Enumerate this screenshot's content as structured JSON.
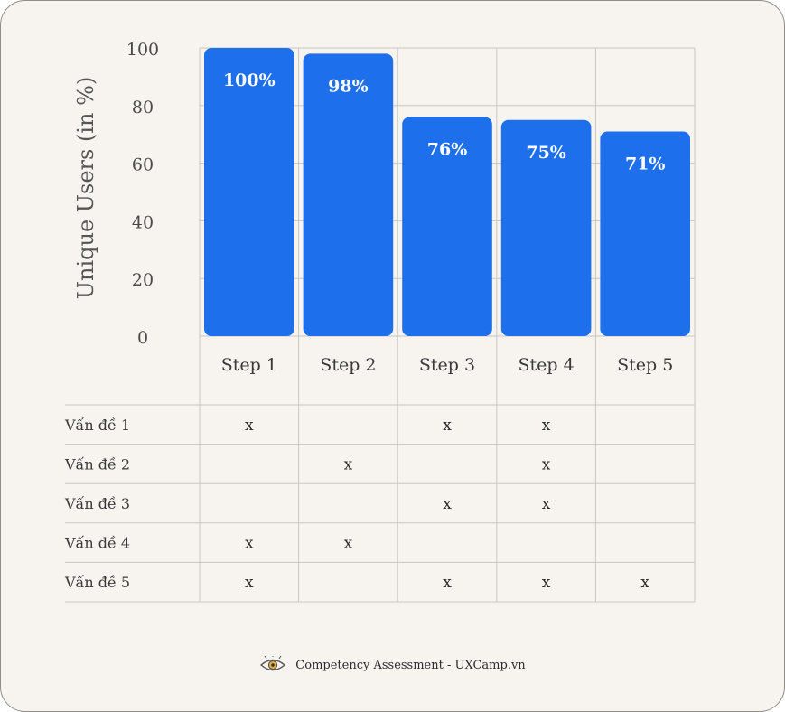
{
  "chart_data": {
    "type": "bar",
    "ylabel": "Unique Users (in %)",
    "ylim": [
      0,
      100
    ],
    "yticks": [
      0,
      20,
      40,
      60,
      80,
      100
    ],
    "categories": [
      "Step 1",
      "Step 2",
      "Step 3",
      "Step 4",
      "Step 5"
    ],
    "values": [
      100,
      98,
      76,
      75,
      71
    ],
    "value_labels": [
      "100%",
      "98%",
      "76%",
      "75%",
      "71%"
    ],
    "bar_color": "#1e6feb",
    "grid": true
  },
  "issue_table": {
    "rows": [
      {
        "label": "Vấn đề 1",
        "marks": [
          "x",
          "",
          "x",
          "x",
          ""
        ]
      },
      {
        "label": "Vấn đề 2",
        "marks": [
          "",
          "x",
          "",
          "x",
          ""
        ]
      },
      {
        "label": "Vấn đề 3",
        "marks": [
          "",
          "",
          "x",
          "x",
          ""
        ]
      },
      {
        "label": "Vấn đề 4",
        "marks": [
          "x",
          "x",
          "",
          "",
          ""
        ]
      },
      {
        "label": "Vấn đề 5",
        "marks": [
          "x",
          "",
          "x",
          "x",
          "x"
        ]
      }
    ]
  },
  "footer": {
    "text": "Competency Assessment - UXCamp.vn",
    "icon": "eye-logo-icon"
  }
}
